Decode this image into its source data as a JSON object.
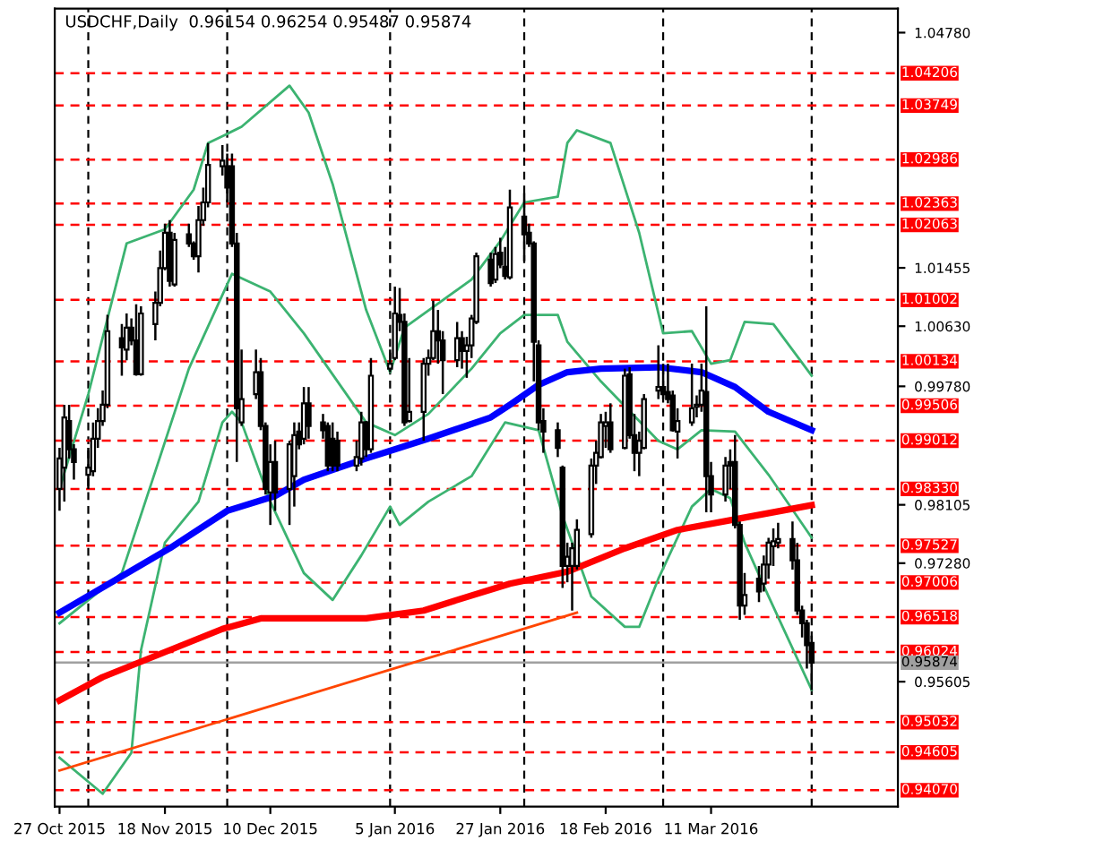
{
  "chart_data": {
    "type": "candlestick",
    "title": "USDCHF,Daily  0.96154 0.96254 0.95487 0.95874",
    "x": [
      "2015-10-27",
      "2015-10-28",
      "2015-10-29",
      "2015-10-30",
      "2015-11-02",
      "2015-11-03",
      "2015-11-04",
      "2015-11-05",
      "2015-11-06",
      "2015-11-09",
      "2015-11-10",
      "2015-11-11",
      "2015-11-12",
      "2015-11-13",
      "2015-11-16",
      "2015-11-17",
      "2015-11-18",
      "2015-11-19",
      "2015-11-20",
      "2015-11-23",
      "2015-11-24",
      "2015-11-25",
      "2015-11-26",
      "2015-11-27",
      "2015-11-30",
      "2015-12-01",
      "2015-12-02",
      "2015-12-03",
      "2015-12-04",
      "2015-12-07",
      "2015-12-08",
      "2015-12-09",
      "2015-12-10",
      "2015-12-11",
      "2015-12-14",
      "2015-12-15",
      "2015-12-16",
      "2015-12-17",
      "2015-12-18",
      "2015-12-21",
      "2015-12-22",
      "2015-12-23",
      "2015-12-24",
      "2015-12-28",
      "2015-12-29",
      "2015-12-30",
      "2015-12-31",
      "2016-01-04",
      "2016-01-05",
      "2016-01-06",
      "2016-01-07",
      "2016-01-08",
      "2016-01-11",
      "2016-01-12",
      "2016-01-13",
      "2016-01-14",
      "2016-01-15",
      "2016-01-18",
      "2016-01-19",
      "2016-01-20",
      "2016-01-21",
      "2016-01-22",
      "2016-01-25",
      "2016-01-26",
      "2016-01-27",
      "2016-01-28",
      "2016-01-29",
      "2016-02-01",
      "2016-02-02",
      "2016-02-03",
      "2016-02-04",
      "2016-02-05",
      "2016-02-08",
      "2016-02-09",
      "2016-02-10",
      "2016-02-11",
      "2016-02-12",
      "2016-02-15",
      "2016-02-16",
      "2016-02-17",
      "2016-02-18",
      "2016-02-19",
      "2016-02-22",
      "2016-02-23",
      "2016-02-24",
      "2016-02-25",
      "2016-02-26",
      "2016-02-29",
      "2016-03-01",
      "2016-03-02",
      "2016-03-03",
      "2016-03-04",
      "2016-03-07",
      "2016-03-08",
      "2016-03-09",
      "2016-03-10",
      "2016-03-11",
      "2016-03-14",
      "2016-03-15",
      "2016-03-16",
      "2016-03-17",
      "2016-03-18",
      "2016-03-21",
      "2016-03-22",
      "2016-03-23",
      "2016-03-24",
      "2016-03-25",
      "2016-03-28",
      "2016-03-29",
      "2016-03-30",
      "2016-03-31",
      "2016-04-01"
    ],
    "ohlc": [
      [
        0.9833,
        0.9891,
        0.9802,
        0.9876
      ],
      [
        0.9863,
        0.9952,
        0.9815,
        0.9934
      ],
      [
        0.9929,
        0.9952,
        0.9876,
        0.9889
      ],
      [
        0.9889,
        0.9896,
        0.9846,
        0.9871
      ],
      [
        0.9853,
        0.9891,
        0.9833,
        0.9863
      ],
      [
        0.9858,
        0.9927,
        0.9851,
        0.9904
      ],
      [
        0.9904,
        0.9947,
        0.9891,
        0.9929
      ],
      [
        0.9929,
        0.9972,
        0.9922,
        0.9952
      ],
      [
        0.9952,
        1.0079,
        0.9947,
        1.0056
      ],
      [
        1.0046,
        1.0066,
        0.9993,
        1.0033
      ],
      [
        1.003,
        1.0081,
        1.0015,
        1.0061
      ],
      [
        1.0061,
        1.0074,
        1.0036,
        1.0043
      ],
      [
        1.0043,
        1.0094,
        0.9993,
        0.9995
      ],
      [
        0.9995,
        1.0091,
        0.9993,
        1.0081
      ],
      [
        1.0066,
        1.0112,
        1.0043,
        1.0096
      ],
      [
        1.0096,
        1.017,
        1.0091,
        1.0145
      ],
      [
        1.0145,
        1.0208,
        1.0142,
        1.0195
      ],
      [
        1.0195,
        1.0213,
        1.0119,
        1.0127
      ],
      [
        1.0122,
        1.0195,
        1.0119,
        1.0185
      ],
      [
        1.0193,
        1.0208,
        1.0175,
        1.018
      ],
      [
        1.018,
        1.0183,
        1.0157,
        1.0162
      ],
      [
        1.0162,
        1.0233,
        1.0139,
        1.0213
      ],
      [
        1.0213,
        1.0259,
        1.0205,
        1.0238
      ],
      [
        1.0238,
        1.0322,
        1.0231,
        1.0291
      ],
      [
        1.0289,
        1.0319,
        1.0276,
        1.0297
      ],
      [
        1.0289,
        1.0307,
        1.0238,
        1.0259
      ],
      [
        1.0289,
        1.0307,
        1.0175,
        1.018
      ],
      [
        1.018,
        1.0195,
        0.9871,
        0.9947
      ],
      [
        0.9927,
        1.003,
        0.9922,
        0.996
      ],
      [
        0.9967,
        1.003,
        0.996,
        0.9998
      ],
      [
        0.9998,
        1.0018,
        0.9916,
        0.9922
      ],
      [
        0.9922,
        0.9927,
        0.9825,
        0.9833
      ],
      [
        0.9828,
        0.9896,
        0.9782,
        0.9871
      ],
      [
        0.9871,
        0.9901,
        0.9802,
        0.9828
      ],
      [
        0.9833,
        0.9901,
        0.9782,
        0.9896
      ],
      [
        0.9851,
        0.9927,
        0.9808,
        0.9909
      ],
      [
        0.9914,
        0.9927,
        0.9889,
        0.9896
      ],
      [
        0.9904,
        0.9977,
        0.9896,
        0.9954
      ],
      [
        0.9954,
        0.9977,
        0.9904,
        0.9922
      ],
      [
        0.9927,
        0.9939,
        0.9904,
        0.9916
      ],
      [
        0.9922,
        0.9927,
        0.9858,
        0.9866
      ],
      [
        0.9904,
        0.9927,
        0.9858,
        0.9866
      ],
      [
        0.9901,
        0.9914,
        0.9858,
        0.9866
      ],
      [
        0.9866,
        0.9901,
        0.9858,
        0.9878
      ],
      [
        0.9876,
        0.9942,
        0.9866,
        0.9927
      ],
      [
        0.9927,
        0.9929,
        0.9878,
        0.9889
      ],
      [
        0.9889,
        1.0018,
        0.9884,
        0.9993
      ],
      [
        1.0003,
        1.003,
        0.9998,
        1.001
      ],
      [
        1.0018,
        1.0119,
        1.0015,
        1.0081
      ],
      [
        1.0079,
        1.0117,
        1.0056,
        1.0069
      ],
      [
        1.0069,
        1.0081,
        0.9922,
        0.9927
      ],
      [
        0.9929,
        1.0018,
        0.9927,
        0.9942
      ],
      [
        0.9942,
        1.0018,
        0.9901,
        1.001
      ],
      [
        1.001,
        1.003,
        0.9993,
        1.0018
      ],
      [
        1.0018,
        1.0099,
        1.0015,
        1.0056
      ],
      [
        1.0056,
        1.0086,
        1.001,
        1.0043
      ],
      [
        1.0043,
        1.0056,
        0.9967,
        1.0015
      ],
      [
        1.0015,
        1.0069,
        1.0005,
        1.0046
      ],
      [
        1.0046,
        1.0056,
        1.0003,
        1.0028
      ],
      [
        1.0028,
        1.0048,
        0.999,
        1.0036
      ],
      [
        1.0036,
        1.0079,
        1.0018,
        1.0074
      ],
      [
        1.0069,
        1.0167,
        1.0066,
        1.0162
      ],
      [
        1.0157,
        1.0167,
        1.0119,
        1.0124
      ],
      [
        1.0129,
        1.0175,
        1.0124,
        1.0165
      ],
      [
        1.0167,
        1.0188,
        1.0145,
        1.015
      ],
      [
        1.0147,
        1.0175,
        1.0129,
        1.0134
      ],
      [
        1.0132,
        1.0256,
        1.0129,
        1.0231
      ],
      [
        1.0218,
        1.0251,
        1.0155,
        1.0193
      ],
      [
        1.0195,
        1.0208,
        1.0175,
        1.018
      ],
      [
        1.018,
        1.0183,
        0.9985,
        1.0041
      ],
      [
        1.0036,
        1.0043,
        0.9916,
        0.9927
      ],
      [
        0.9929,
        0.9947,
        0.9884,
        0.9914
      ],
      [
        0.9916,
        0.9927,
        0.9878,
        0.9891
      ],
      [
        0.9863,
        0.9866,
        0.9693,
        0.9724
      ],
      [
        0.9724,
        0.9757,
        0.9701,
        0.9737
      ],
      [
        0.9724,
        0.9757,
        0.9661,
        0.9749
      ],
      [
        0.9724,
        0.979,
        0.9719,
        0.9775
      ],
      [
        0.9769,
        0.9876,
        0.9764,
        0.9866
      ],
      [
        0.9866,
        0.9901,
        0.984,
        0.9884
      ],
      [
        0.9878,
        0.9939,
        0.9876,
        0.9927
      ],
      [
        0.9922,
        0.9942,
        0.9891,
        0.9927
      ],
      [
        0.9927,
        0.9954,
        0.9884,
        0.9889
      ],
      [
        0.9891,
        1.0003,
        0.9889,
        0.9993
      ],
      [
        0.9995,
        1.0005,
        0.9904,
        0.9909
      ],
      [
        0.9909,
        0.9939,
        0.9858,
        0.9884
      ],
      [
        0.9884,
        0.9914,
        0.9851,
        0.9901
      ],
      [
        0.9891,
        0.9967,
        0.9889,
        0.996
      ],
      [
        0.9972,
        1.0036,
        0.996,
        0.9977
      ],
      [
        0.9977,
        1.001,
        0.996,
        0.9967
      ],
      [
        0.997,
        1.001,
        0.9954,
        0.996
      ],
      [
        0.9965,
        0.9972,
        0.9914,
        0.9916
      ],
      [
        0.9914,
        0.9947,
        0.9876,
        0.9929
      ],
      [
        0.9927,
        1.001,
        0.9922,
        0.9947
      ],
      [
        0.9949,
        0.9965,
        0.9934,
        0.9952
      ],
      [
        0.9952,
        1.001,
        0.9942,
        0.9972
      ],
      [
        0.997,
        1.0091,
        0.98,
        0.9851
      ],
      [
        0.9851,
        0.9871,
        0.98,
        0.9825
      ],
      [
        0.9825,
        0.9878,
        0.9815,
        0.9866
      ],
      [
        0.9871,
        0.9889,
        0.9833,
        0.9866
      ],
      [
        0.9871,
        0.9909,
        0.9777,
        0.9782
      ],
      [
        0.9782,
        0.9787,
        0.9648,
        0.9668
      ],
      [
        0.9668,
        0.9714,
        0.9655,
        0.9683
      ],
      [
        0.9706,
        0.9724,
        0.9673,
        0.9688
      ],
      [
        0.9699,
        0.9739,
        0.9688,
        0.9726
      ],
      [
        0.9726,
        0.9764,
        0.9706,
        0.9757
      ],
      [
        0.9752,
        0.9777,
        0.9724,
        0.9759
      ],
      [
        0.9757,
        0.9785,
        0.9749,
        0.9762
      ],
      [
        0.9762,
        0.9787,
        0.9719,
        0.9732
      ],
      [
        0.9732,
        0.9757,
        0.9655,
        0.9661
      ],
      [
        0.9661,
        0.9668,
        0.9623,
        0.9643
      ],
      [
        0.9643,
        0.9648,
        0.9579,
        0.9612
      ],
      [
        0.96154,
        0.96254,
        0.95487,
        0.95874
      ]
    ],
    "series": [
      {
        "type": "line",
        "color": "#3cb371",
        "x": [
          "2015-10-27",
          "2015-11-02",
          "2015-11-10",
          "2015-11-18",
          "2015-11-24",
          "2015-11-27",
          "2015-12-01",
          "2015-12-04",
          "2015-12-14",
          "2015-12-18",
          "2015-12-23",
          "2015-12-30",
          "2016-01-04",
          "2016-01-07",
          "2016-01-21",
          "2016-01-27",
          "2016-02-01",
          "2016-02-08",
          "2016-02-10",
          "2016-02-12",
          "2016-02-19",
          "2016-02-25",
          "2016-03-01",
          "2016-03-07",
          "2016-03-11",
          "2016-03-15",
          "2016-03-18",
          "2016-03-24",
          "2016-04-01"
        ],
        "values": [
          0.9833,
          0.9967,
          1.018,
          1.02,
          1.0256,
          1.0322,
          1.0335,
          1.0345,
          1.0403,
          1.0365,
          1.0264,
          1.0086,
          0.9998,
          1.0061,
          1.0129,
          1.0183,
          1.0238,
          1.0246,
          1.0322,
          1.034,
          1.0322,
          1.0195,
          1.0053,
          1.0056,
          1.001,
          1.0015,
          1.0069,
          1.0066,
          0.9993
        ]
      },
      {
        "type": "line",
        "color": "#3cb371",
        "x": [
          "2015-10-27",
          "2015-11-09",
          "2015-11-16",
          "2015-11-23",
          "2015-12-02",
          "2015-12-10",
          "2015-12-17",
          "2015-12-30",
          "2016-01-05",
          "2016-01-12",
          "2016-01-21",
          "2016-01-27",
          "2016-02-01",
          "2016-02-08",
          "2016-02-10",
          "2016-02-17",
          "2016-02-29",
          "2016-03-04",
          "2016-03-09",
          "2016-03-16",
          "2016-03-23",
          "2016-04-01"
        ],
        "values": [
          0.9643,
          0.9714,
          0.9858,
          1.0003,
          1.0137,
          1.0112,
          1.0053,
          0.9927,
          0.9909,
          0.9939,
          1.0003,
          1.0053,
          1.0079,
          1.0079,
          1.0041,
          0.9985,
          0.9901,
          0.9889,
          0.9916,
          0.9914,
          0.9853,
          0.9764
        ]
      },
      {
        "type": "line",
        "color": "#3cb371",
        "x": [
          "2015-10-27",
          "2015-11-05",
          "2015-11-11",
          "2015-11-13",
          "2015-11-18",
          "2015-11-25",
          "2015-11-30",
          "2015-12-02",
          "2015-12-04",
          "2015-12-10",
          "2015-12-17",
          "2015-12-23",
          "2015-12-29",
          "2016-01-04",
          "2016-01-06",
          "2016-01-12",
          "2016-01-21",
          "2016-01-28",
          "2016-02-04",
          "2016-02-09",
          "2016-02-15",
          "2016-02-22",
          "2016-02-25",
          "2016-02-29",
          "2016-03-07",
          "2016-03-11",
          "2016-03-15",
          "2016-03-18",
          "2016-03-23",
          "2016-04-01"
        ],
        "values": [
          0.9453,
          0.9402,
          0.946,
          0.9605,
          0.9757,
          0.9815,
          0.9927,
          0.9942,
          0.9927,
          0.9815,
          0.9714,
          0.9676,
          0.9739,
          0.9808,
          0.9782,
          0.9815,
          0.9851,
          0.9927,
          0.9916,
          0.9795,
          0.9681,
          0.9638,
          0.9638,
          0.9706,
          0.9808,
          0.9833,
          0.982,
          0.9757,
          0.9681,
          0.9549
        ]
      },
      {
        "type": "line",
        "color": "#0000ff",
        "x": [
          "2015-10-27",
          "2015-11-19",
          "2015-12-01",
          "2015-12-11",
          "2015-12-17",
          "2015-12-30",
          "2016-01-12",
          "2016-01-25",
          "2016-01-29",
          "2016-02-04",
          "2016-02-10",
          "2016-02-17",
          "2016-02-29",
          "2016-03-09",
          "2016-03-16",
          "2016-03-23",
          "2016-04-01"
        ],
        "values": [
          0.9658,
          0.9749,
          0.9802,
          0.9823,
          0.9846,
          0.9876,
          0.9904,
          0.9934,
          0.9952,
          0.998,
          0.9998,
          1.0003,
          1.0005,
          0.9998,
          0.9977,
          0.9942,
          0.9916
        ]
      },
      {
        "type": "line",
        "color": "#ff0000",
        "x": [
          "2015-10-27",
          "2015-11-05",
          "2015-11-30",
          "2015-12-08",
          "2015-12-30",
          "2016-01-11",
          "2016-01-18",
          "2016-01-29",
          "2016-02-10",
          "2016-02-22",
          "2016-03-04",
          "2016-03-16",
          "2016-04-01"
        ],
        "values": [
          0.9534,
          0.9567,
          0.9635,
          0.965,
          0.965,
          0.9661,
          0.9676,
          0.9699,
          0.9716,
          0.9749,
          0.9775,
          0.979,
          0.981
        ]
      },
      {
        "type": "line",
        "color": "#ff4500",
        "x": [
          "2015-10-27",
          "2016-02-12"
        ],
        "values": [
          0.9435,
          0.9658
        ]
      }
    ],
    "xlim": [
      "2015-10-26",
      "2016-04-19"
    ],
    "ylim": [
      0.9384,
      1.0512
    ],
    "xticks": [
      {
        "value": "2015-10-27",
        "label": "27 Oct 2015"
      },
      {
        "value": "2015-11-18",
        "label": "18 Nov 2015"
      },
      {
        "value": "2015-12-10",
        "label": "10 Dec 2015"
      },
      {
        "value": "2016-01-05",
        "label": "5 Jan 2016"
      },
      {
        "value": "2016-01-27",
        "label": "27 Jan 2016"
      },
      {
        "value": "2016-02-18",
        "label": "18 Feb 2016"
      },
      {
        "value": "2016-03-11",
        "label": "11 Mar 2016"
      }
    ],
    "yticks": [
      {
        "value": 1.0478,
        "label": "1.04780"
      },
      {
        "value": 1.01455,
        "label": "1.01455"
      },
      {
        "value": 1.0063,
        "label": "1.00630"
      },
      {
        "value": 0.9978,
        "label": "0.99780"
      },
      {
        "value": 0.98105,
        "label": "0.98105"
      },
      {
        "value": 0.9728,
        "label": "0.97280"
      },
      {
        "value": 0.95605,
        "label": "0.95605"
      }
    ],
    "ref_lines": [
      {
        "axis": "x",
        "value": "2015-11-02",
        "color": "#000000",
        "line_style": "dashed"
      },
      {
        "axis": "x",
        "value": "2015-12-01",
        "color": "#000000",
        "line_style": "dashed"
      },
      {
        "axis": "x",
        "value": "2016-01-04",
        "color": "#000000",
        "line_style": "dashed"
      },
      {
        "axis": "x",
        "value": "2016-02-01",
        "color": "#000000",
        "line_style": "dashed"
      },
      {
        "axis": "x",
        "value": "2016-03-01",
        "color": "#000000",
        "line_style": "dashed"
      },
      {
        "axis": "x",
        "value": "2016-04-01",
        "color": "#000000",
        "line_style": "dashed"
      },
      {
        "axis": "y",
        "value": 0.95874,
        "label": "0.95874",
        "color": "#a0a0a0",
        "line_style": "solid"
      },
      {
        "axis": "y",
        "value": 1.04206,
        "label": "1.04206",
        "color": "#ff0000",
        "line_style": "dashed"
      },
      {
        "axis": "y",
        "value": 1.03749,
        "label": "1.03749",
        "color": "#ff0000",
        "line_style": "dashed"
      },
      {
        "axis": "y",
        "value": 1.02986,
        "label": "1.02986",
        "color": "#ff0000",
        "line_style": "dashed"
      },
      {
        "axis": "y",
        "value": 1.02363,
        "label": "1.02363",
        "color": "#ff0000",
        "line_style": "dashed"
      },
      {
        "axis": "y",
        "value": 1.02063,
        "label": "1.02063",
        "color": "#ff0000",
        "line_style": "dashed"
      },
      {
        "axis": "y",
        "value": 1.01002,
        "label": "1.01002",
        "color": "#ff0000",
        "line_style": "dashed"
      },
      {
        "axis": "y",
        "value": 1.00134,
        "label": "1.00134",
        "color": "#ff0000",
        "line_style": "dashed"
      },
      {
        "axis": "y",
        "value": 0.99506,
        "label": "0.99506",
        "color": "#ff0000",
        "line_style": "dashed"
      },
      {
        "axis": "y",
        "value": 0.99012,
        "label": "0.99012",
        "color": "#ff0000",
        "line_style": "dashed"
      },
      {
        "axis": "y",
        "value": 0.9833,
        "label": "0.98330",
        "color": "#ff0000",
        "line_style": "dashed"
      },
      {
        "axis": "y",
        "value": 0.97527,
        "label": "0.97527",
        "color": "#ff0000",
        "line_style": "dashed"
      },
      {
        "axis": "y",
        "value": 0.97006,
        "label": "0.97006",
        "color": "#ff0000",
        "line_style": "dashed"
      },
      {
        "axis": "y",
        "value": 0.96518,
        "label": "0.96518",
        "color": "#ff0000",
        "line_style": "dashed"
      },
      {
        "axis": "y",
        "value": 0.96024,
        "label": "0.96024",
        "color": "#ff0000",
        "line_style": "dashed"
      },
      {
        "axis": "y",
        "value": 0.95032,
        "label": "0.95032",
        "color": "#ff0000",
        "line_style": "dashed"
      },
      {
        "axis": "y",
        "value": 0.94605,
        "label": "0.94605",
        "color": "#ff0000",
        "line_style": "dashed"
      },
      {
        "axis": "y",
        "value": 0.9407,
        "label": "0.94070",
        "color": "#ff0000",
        "line_style": "dashed"
      }
    ]
  }
}
